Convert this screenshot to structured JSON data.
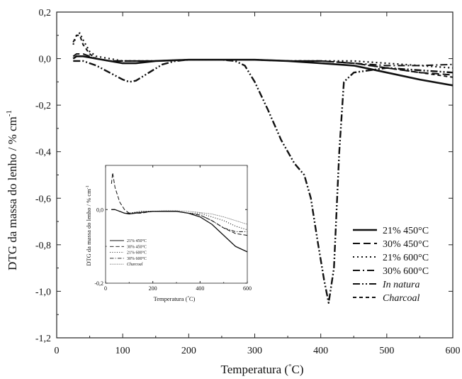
{
  "chart_data": [
    {
      "type": "line",
      "title": "",
      "xlabel": "Temperatura (°C)",
      "xlabel_main": "Temperatura (",
      "xlabel_unit": "°",
      "xlabel_c": "C)",
      "ylabel": "DTG da massa do lenho / % cm",
      "ylabel_exp": "-1",
      "xlim": [
        0,
        600
      ],
      "ylim": [
        -1.2,
        0.2
      ],
      "xticks": [
        0,
        100,
        200,
        300,
        400,
        500,
        600
      ],
      "yticks": [
        0.2,
        0.0,
        -0.2,
        -0.4,
        -0.6,
        -0.8,
        -1.0,
        -1.2
      ],
      "ytick_labels": [
        "0,2",
        "0,0",
        "-0,2",
        "-0,4",
        "-0,6",
        "-0,8",
        "-1,0",
        "-1,2"
      ],
      "legend_position": "lower-right",
      "series": [
        {
          "name": "21% 450°C",
          "style": "solid",
          "x": [
            25,
            30,
            40,
            60,
            80,
            100,
            120,
            150,
            200,
            250,
            300,
            350,
            400,
            450,
            500,
            550,
            600
          ],
          "y": [
            0.0,
            0.01,
            0.01,
            0.0,
            -0.01,
            -0.02,
            -0.02,
            -0.01,
            -0.005,
            -0.005,
            -0.005,
            -0.01,
            -0.02,
            -0.03,
            -0.06,
            -0.09,
            -0.115
          ]
        },
        {
          "name": "30% 450°C",
          "style": "dash",
          "x": [
            25,
            30,
            40,
            60,
            80,
            100,
            120,
            150,
            200,
            250,
            300,
            350,
            400,
            450,
            500,
            550,
            600
          ],
          "y": [
            0.01,
            0.02,
            0.02,
            0.0,
            -0.01,
            -0.01,
            -0.01,
            -0.01,
            -0.005,
            -0.005,
            -0.005,
            -0.01,
            -0.01,
            -0.02,
            -0.04,
            -0.06,
            -0.07
          ]
        },
        {
          "name": "21% 600°C",
          "style": "dot",
          "x": [
            25,
            30,
            35,
            40,
            50,
            60,
            80,
            100,
            150,
            200,
            250,
            300,
            350,
            400,
            450,
            500,
            550,
            600
          ],
          "y": [
            0.06,
            0.1,
            0.11,
            0.08,
            0.03,
            0.01,
            0.0,
            -0.01,
            -0.01,
            -0.005,
            -0.005,
            -0.005,
            -0.01,
            -0.01,
            -0.01,
            -0.02,
            -0.03,
            -0.04
          ]
        },
        {
          "name": "30% 600°C",
          "style": "dashdot",
          "x": [
            25,
            30,
            40,
            60,
            80,
            100,
            150,
            200,
            250,
            300,
            350,
            400,
            450,
            500,
            550,
            600
          ],
          "y": [
            0.0,
            0.01,
            0.01,
            0.0,
            -0.01,
            -0.01,
            -0.01,
            -0.005,
            -0.005,
            -0.005,
            -0.01,
            -0.01,
            -0.02,
            -0.03,
            -0.03,
            -0.025
          ]
        },
        {
          "name": "In natura",
          "style": "dashdotdot",
          "x": [
            25,
            40,
            60,
            80,
            100,
            110,
            120,
            140,
            160,
            180,
            200,
            220,
            250,
            270,
            285,
            300,
            320,
            340,
            360,
            375,
            385,
            395,
            405,
            412,
            420,
            428,
            435,
            450,
            500,
            550,
            600
          ],
          "y": [
            -0.01,
            -0.01,
            -0.03,
            -0.06,
            -0.09,
            -0.1,
            -0.095,
            -0.06,
            -0.025,
            -0.01,
            -0.005,
            -0.005,
            -0.005,
            -0.01,
            -0.03,
            -0.1,
            -0.22,
            -0.35,
            -0.45,
            -0.5,
            -0.6,
            -0.78,
            -0.95,
            -1.05,
            -0.9,
            -0.4,
            -0.1,
            -0.06,
            -0.04,
            -0.05,
            -0.06
          ]
        },
        {
          "name": "Charcoal",
          "style": "shortdash",
          "x": [
            25,
            30,
            35,
            40,
            50,
            60,
            80,
            100,
            150,
            200,
            250,
            300,
            350,
            400,
            450,
            500,
            550,
            600
          ],
          "y": [
            0.07,
            0.1,
            0.1,
            0.06,
            0.02,
            0.0,
            -0.01,
            -0.01,
            -0.01,
            -0.005,
            -0.005,
            -0.005,
            -0.01,
            -0.01,
            -0.02,
            -0.04,
            -0.06,
            -0.08
          ]
        }
      ]
    },
    {
      "type": "line",
      "title": "",
      "xlabel_main": "Temperatura (",
      "xlabel_unit": "°",
      "xlabel_c": "C)",
      "ylabel": "DTG da massa do lenho / % cm",
      "ylabel_exp": "-1",
      "xlim": [
        0,
        600
      ],
      "ylim": [
        -0.2,
        0.12
      ],
      "xticks": [
        0,
        200,
        400,
        600
      ],
      "yticks": [
        0.0,
        -0.2
      ],
      "ytick_labels": [
        "0,0",
        "-0,2"
      ],
      "legend_position": "lower-left",
      "series": [
        {
          "name": "21% 450°C",
          "style": "solid",
          "x": [
            25,
            40,
            60,
            80,
            100,
            150,
            200,
            250,
            300,
            350,
            400,
            450,
            500,
            550,
            600
          ],
          "y": [
            0.0,
            0.0,
            -0.005,
            -0.01,
            -0.012,
            -0.008,
            -0.005,
            -0.005,
            -0.005,
            -0.01,
            -0.02,
            -0.04,
            -0.07,
            -0.1,
            -0.115
          ]
        },
        {
          "name": "30% 450°C",
          "style": "dash",
          "x": [
            25,
            30,
            40,
            60,
            80,
            100,
            150,
            200,
            250,
            300,
            350,
            400,
            450,
            500,
            550,
            600
          ],
          "y": [
            0.07,
            0.1,
            0.06,
            0.02,
            0.0,
            -0.01,
            -0.01,
            -0.005,
            -0.005,
            -0.005,
            -0.01,
            -0.015,
            -0.03,
            -0.05,
            -0.065,
            -0.07
          ]
        },
        {
          "name": "21% 600°C",
          "style": "dot",
          "x": [
            25,
            40,
            60,
            80,
            100,
            150,
            200,
            250,
            300,
            350,
            400,
            450,
            500,
            550,
            600
          ],
          "y": [
            0.0,
            0.0,
            -0.005,
            -0.01,
            -0.01,
            -0.005,
            -0.005,
            -0.005,
            -0.005,
            -0.01,
            -0.01,
            -0.02,
            -0.03,
            -0.045,
            -0.055
          ]
        },
        {
          "name": "30% 600°C",
          "style": "dashdot",
          "x": [
            25,
            40,
            60,
            80,
            100,
            150,
            200,
            250,
            300,
            350,
            400,
            450,
            500,
            550,
            600
          ],
          "y": [
            0.0,
            0.0,
            -0.005,
            -0.01,
            -0.01,
            -0.008,
            -0.005,
            -0.005,
            -0.005,
            -0.01,
            -0.015,
            -0.03,
            -0.05,
            -0.06,
            -0.06
          ]
        },
        {
          "name": "Charcoal",
          "style": "fine-dot",
          "x": [
            25,
            40,
            60,
            80,
            100,
            150,
            200,
            250,
            300,
            350,
            400,
            450,
            500,
            550,
            600
          ],
          "y": [
            0.0,
            0.0,
            -0.005,
            -0.01,
            -0.01,
            -0.005,
            -0.005,
            -0.003,
            -0.003,
            -0.005,
            -0.008,
            -0.012,
            -0.02,
            -0.03,
            -0.04
          ]
        }
      ]
    }
  ]
}
